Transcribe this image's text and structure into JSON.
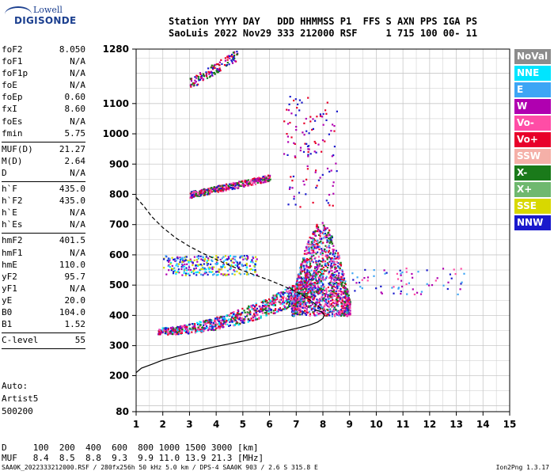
{
  "logo": {
    "line1": "Lowell",
    "line2": "DIGISONDE"
  },
  "header": {
    "line1": "Station YYYY DAY   DDD HHMMSS P1  FFS S AXN PPS IGA PS",
    "line2": "SaoLuis 2022 Nov29 333 212000 RSF     1 715 100 00- 11"
  },
  "params": [
    {
      "label": "foF2",
      "value": "8.050"
    },
    {
      "label": "foF1",
      "value": "N/A"
    },
    {
      "label": "foF1p",
      "value": "N/A"
    },
    {
      "label": "foE",
      "value": "N/A"
    },
    {
      "label": "foEp",
      "value": "0.60"
    },
    {
      "label": "fxI",
      "value": "8.60"
    },
    {
      "label": "foEs",
      "value": "N/A"
    },
    {
      "label": "fmin",
      "value": "5.75"
    },
    {
      "sep": true
    },
    {
      "label": "MUF(D)",
      "value": "21.27"
    },
    {
      "label": "M(D)",
      "value": "2.64"
    },
    {
      "label": "D",
      "value": "N/A"
    },
    {
      "sep": true
    },
    {
      "label": "h`F",
      "value": "435.0"
    },
    {
      "label": "h`F2",
      "value": "435.0"
    },
    {
      "label": "h`E",
      "value": "N/A"
    },
    {
      "label": "h`Es",
      "value": "N/A"
    },
    {
      "sep": true
    },
    {
      "label": "hmF2",
      "value": "401.5"
    },
    {
      "label": "hmF1",
      "value": "N/A"
    },
    {
      "label": "hmE",
      "value": "110.0"
    },
    {
      "label": "yF2",
      "value": "95.7"
    },
    {
      "label": "yF1",
      "value": "N/A"
    },
    {
      "label": "yE",
      "value": "20.0"
    },
    {
      "label": "B0",
      "value": "104.0"
    },
    {
      "label": "B1",
      "value": "1.52"
    },
    {
      "sep": true
    },
    {
      "label": "C-level",
      "value": "55"
    },
    {
      "sep": true
    }
  ],
  "auto": {
    "l1": "Auto:",
    "l2": "Artist5",
    "l3": "500200"
  },
  "legend": [
    {
      "label": "NoVal",
      "color": "#8c8c8c"
    },
    {
      "label": "NNE",
      "color": "#00e5ff"
    },
    {
      "label": "E",
      "color": "#3da5f5"
    },
    {
      "label": "W",
      "color": "#b000b0"
    },
    {
      "label": "Vo-",
      "color": "#ff4da6"
    },
    {
      "label": "Vo+",
      "color": "#e8002a"
    },
    {
      "label": "SSW",
      "color": "#f5b0a8"
    },
    {
      "label": "X-",
      "color": "#1a7a1a"
    },
    {
      "label": "X+",
      "color": "#6fb86f"
    },
    {
      "label": "SSE",
      "color": "#d8d800"
    },
    {
      "label": "NNW",
      "color": "#1a1acc"
    }
  ],
  "muf_table": {
    "line1": "D     100  200  400  600  800 1000 1500 3000 [km]",
    "line2": "MUF   8.4  8.5  8.8  9.3  9.9 11.0 13.9 21.3 [MHz]"
  },
  "footer": "SAA0K_2022333212000.RSF / 280fx256h 50 kHz 5.0 km / DPS-4 SAA0K 903 / 2.6 S 315.8 E",
  "version": "Ion2Png 1.3.17",
  "chart_data": {
    "type": "scatter",
    "title": "",
    "xlabel": "",
    "ylabel": "",
    "xlim": [
      1,
      15
    ],
    "ylim": [
      80,
      1280
    ],
    "x_ticks": [
      1,
      2,
      3,
      4,
      5,
      6,
      7,
      8,
      9,
      10,
      11,
      12,
      13,
      14,
      15
    ],
    "y_ticks": [
      80,
      200,
      300,
      400,
      500,
      600,
      700,
      800,
      900,
      1000,
      1100,
      1280
    ],
    "y_tick_labels": [
      "80",
      "200",
      "300",
      "400",
      "500",
      "600",
      "700",
      "800",
      "900",
      "1000",
      "1100",
      "1280"
    ],
    "grid": true,
    "traces": [
      {
        "name": "true-height profile",
        "style": "solid",
        "points": [
          [
            1.0,
            210
          ],
          [
            1.2,
            225
          ],
          [
            1.6,
            238
          ],
          [
            2.0,
            252
          ],
          [
            2.5,
            264
          ],
          [
            3.0,
            276
          ],
          [
            3.5,
            287
          ],
          [
            4.0,
            297
          ],
          [
            4.5,
            306
          ],
          [
            5.0,
            315
          ],
          [
            5.5,
            325
          ],
          [
            6.0,
            335
          ],
          [
            6.5,
            347
          ],
          [
            7.0,
            357
          ],
          [
            7.5,
            368
          ],
          [
            7.8,
            378
          ],
          [
            8.0,
            390
          ],
          [
            8.05,
            401.5
          ],
          [
            7.95,
            412
          ],
          [
            7.7,
            418
          ]
        ]
      },
      {
        "name": "virtual-height model",
        "style": "dashed",
        "points": [
          [
            1.0,
            790
          ],
          [
            1.3,
            760
          ],
          [
            1.6,
            725
          ],
          [
            2.0,
            690
          ],
          [
            2.5,
            655
          ],
          [
            3.0,
            628
          ],
          [
            3.5,
            605
          ],
          [
            4.0,
            585
          ],
          [
            4.5,
            565
          ],
          [
            5.0,
            548
          ],
          [
            5.5,
            532
          ],
          [
            6.0,
            516
          ],
          [
            6.5,
            498
          ],
          [
            7.0,
            478
          ],
          [
            7.5,
            452
          ],
          [
            7.8,
            432
          ],
          [
            8.05,
            415
          ]
        ]
      }
    ],
    "echo_clusters": [
      {
        "region": "F2 trace",
        "x_range": [
          1.8,
          8.0
        ],
        "y_range": [
          345,
          520
        ],
        "colors": [
          "#1a1acc",
          "#e8002a",
          "#b000b0",
          "#1a7a1a",
          "#00e5ff",
          "#ff4da6"
        ]
      },
      {
        "region": "F2 spread",
        "x_range": [
          6.8,
          9.0
        ],
        "y_range": [
          400,
          720
        ],
        "colors": [
          "#e8002a",
          "#ff4da6",
          "#1a1acc",
          "#3da5f5",
          "#1a7a1a",
          "#b000b0"
        ]
      },
      {
        "region": "tail",
        "x_range": [
          9.0,
          13.3
        ],
        "y_range": [
          470,
          560
        ],
        "colors": [
          "#ff4da6",
          "#3da5f5",
          "#1a1acc",
          "#b000b0"
        ]
      },
      {
        "region": "multiple hop 1",
        "x_range": [
          2.0,
          5.5
        ],
        "y_range": [
          535,
          600
        ],
        "colors": [
          "#00e5ff",
          "#3da5f5",
          "#d8d800",
          "#1a1acc",
          "#b000b0"
        ]
      },
      {
        "region": "multiple hop 2",
        "x_range": [
          3.0,
          6.0
        ],
        "y_range": [
          790,
          860
        ],
        "colors": [
          "#b000b0",
          "#1a1acc",
          "#e8002a",
          "#ff4da6",
          "#1a7a1a"
        ]
      },
      {
        "region": "multiple hop 3",
        "x_range": [
          3.0,
          4.8
        ],
        "y_range": [
          1150,
          1270
        ],
        "colors": [
          "#b000b0",
          "#1a1acc",
          "#e8002a",
          "#1a7a1a"
        ]
      },
      {
        "region": "scattered high echoes",
        "x_range": [
          6.5,
          8.5
        ],
        "y_range": [
          760,
          1130
        ],
        "colors": [
          "#b000b0",
          "#e8002a",
          "#1a1acc"
        ]
      }
    ]
  }
}
